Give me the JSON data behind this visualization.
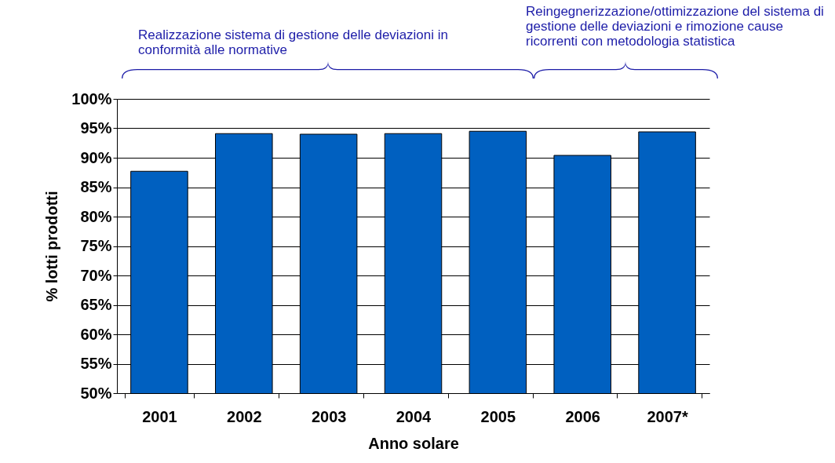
{
  "chart_data": {
    "type": "bar",
    "xlabel": "Anno solare",
    "ylabel": "% lotti prodotti",
    "categories": [
      "2001",
      "2002",
      "2003",
      "2004",
      "2005",
      "2006",
      "2007*"
    ],
    "values": [
      87.7,
      94.1,
      94.0,
      94.1,
      94.5,
      90.4,
      94.4
    ],
    "color": "#0060c0",
    "ylim": [
      50,
      100
    ],
    "yticks": [
      {
        "value": 50,
        "label": "50%"
      },
      {
        "value": 55,
        "label": "55%"
      },
      {
        "value": 60,
        "label": "60%"
      },
      {
        "value": 65,
        "label": "65%"
      },
      {
        "value": 70,
        "label": "70%"
      },
      {
        "value": 75,
        "label": "75%"
      },
      {
        "value": 80,
        "label": "80%"
      },
      {
        "value": 85,
        "label": "85%"
      },
      {
        "value": 90,
        "label": "90%"
      },
      {
        "value": 95,
        "label": "95%"
      },
      {
        "value": 100,
        "label": "100%"
      }
    ],
    "grid": "y",
    "annotations": [
      "Realizzazione sistema di gestione delle deviazioni in conformità alle normative",
      "Reingegnerizzazione/ottimizzazione del sistema di gestione delle deviazioni e rimozione cause ricorrenti con metodologia statistica"
    ]
  }
}
